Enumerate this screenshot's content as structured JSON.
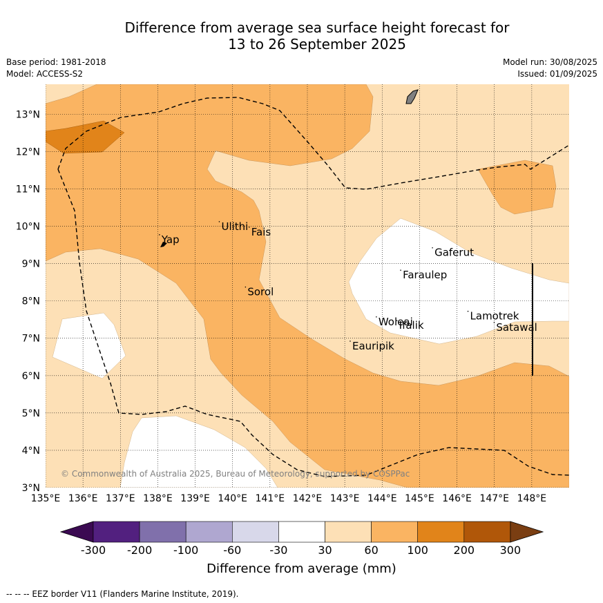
{
  "title_line1": "Difference from average sea surface height forecast for",
  "title_line2": "13 to 26 September 2025",
  "meta": {
    "base_period": "Base period: 1981-2018",
    "model": "Model: ACCESS-S2",
    "model_run": "Model run: 30/08/2025",
    "issued": "Issued: 01/09/2025"
  },
  "map": {
    "lon_range": [
      135,
      149
    ],
    "lat_range": [
      3,
      13.8
    ],
    "lon_ticks": [
      "135°E",
      "136°E",
      "137°E",
      "138°E",
      "139°E",
      "140°E",
      "141°E",
      "142°E",
      "143°E",
      "144°E",
      "145°E",
      "146°E",
      "147°E",
      "148°E"
    ],
    "lat_ticks": [
      "3°N",
      "4°N",
      "5°N",
      "6°N",
      "7°N",
      "8°N",
      "9°N",
      "10°N",
      "11°N",
      "12°N",
      "13°N"
    ],
    "places": [
      {
        "name": "Yap",
        "lon": 138.1,
        "lat": 9.55
      },
      {
        "name": "Ulithi",
        "lon": 139.7,
        "lat": 9.9
      },
      {
        "name": "Fais",
        "lon": 140.5,
        "lat": 9.75
      },
      {
        "name": "Sorol",
        "lon": 140.4,
        "lat": 8.15
      },
      {
        "name": "Gaferut",
        "lon": 145.4,
        "lat": 9.2
      },
      {
        "name": "Faraulep",
        "lon": 144.55,
        "lat": 8.6
      },
      {
        "name": "Woleai",
        "lon": 143.9,
        "lat": 7.35
      },
      {
        "name": "Ifalik",
        "lon": 144.45,
        "lat": 7.25
      },
      {
        "name": "Lamotrek",
        "lon": 146.35,
        "lat": 7.5
      },
      {
        "name": "Satawal",
        "lon": 147.05,
        "lat": 7.2
      },
      {
        "name": "Eauripik",
        "lon": 143.2,
        "lat": 6.7
      }
    ],
    "copyright": "© Commonwealth of Australia 2025, Bureau of Meteorology, supported by COSPPac"
  },
  "colors": {
    "c_-300": "#3b0a52",
    "c_-200": "#52207f",
    "c_-100": "#8070ab",
    "c_-60": "#afa7d0",
    "c_-30": "#d8d8ea",
    "c_30": "#ffffff",
    "c_60": "#fde0b6",
    "c_100": "#fab462",
    "c_200": "#e1841a",
    "c_300": "#b05709",
    "c_300plus": "#7a3e12",
    "land": "#808080"
  },
  "colorbar": {
    "labels": [
      "-300",
      "-200",
      "-100",
      "-60",
      "-30",
      "30",
      "60",
      "100",
      "200",
      "300"
    ],
    "title": "Difference from average (mm)"
  },
  "footer": "--  --  -- EEZ border V11 (Flanders Marine Institute, 2019)."
}
